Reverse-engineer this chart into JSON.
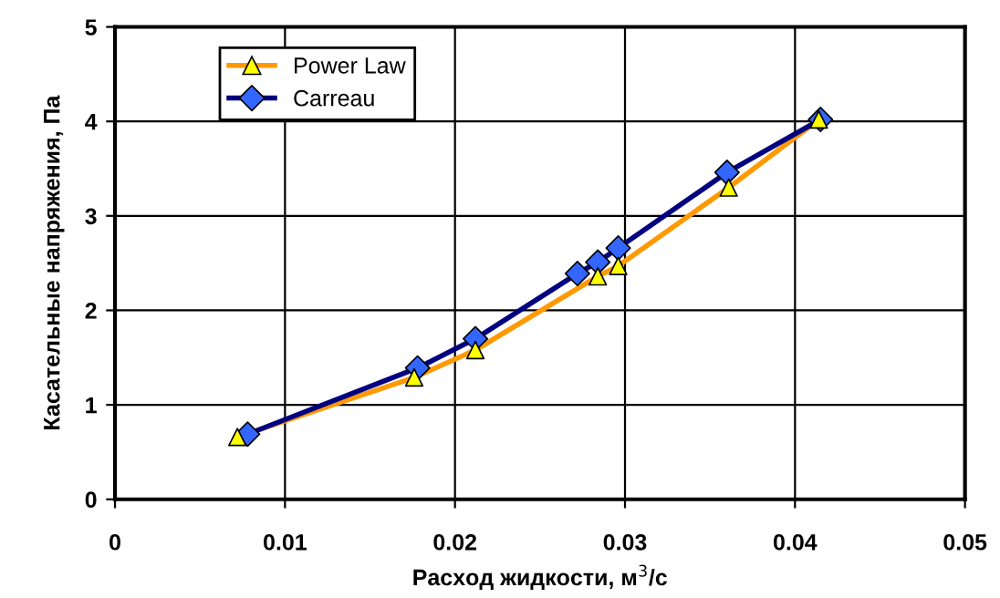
{
  "chart_data": {
    "type": "line",
    "xlabel": "Расход жидкости, м$^{3}$/с",
    "ylabel": "Касательные напряжения, Па",
    "xlim": [
      0,
      0.05
    ],
    "xticks": [
      0,
      0.01,
      0.02,
      0.03,
      0.04,
      0.05
    ],
    "ylim": [
      0,
      5
    ],
    "yticks": [
      0,
      1,
      2,
      3,
      4,
      5
    ],
    "grid": true,
    "legend": "top left",
    "series": [
      {
        "name": "Power Law",
        "color": "#ff9900",
        "marker": "triangle",
        "colors": [
          "#ffff00",
          "#ffff00",
          "#ffff00",
          "#ffff00",
          "#ffff00",
          "#ffff00",
          "#ffff00"
        ],
        "x": [
          0.0072,
          0.0176,
          0.0212,
          0.0284,
          0.0296,
          0.0361,
          0.0414
        ],
        "values": [
          0.66,
          1.29,
          1.58,
          2.36,
          2.47,
          3.3,
          4.02
        ]
      },
      {
        "name": "Carreau",
        "color": "#000080",
        "marker": "diamond",
        "colors": [
          "#3366ff",
          "#3366ff",
          "#3366ff",
          "#3366ff",
          "#3366ff",
          "#3366ff",
          "#3366ff",
          "#3366ff"
        ],
        "x": [
          0.0078,
          0.0178,
          0.0212,
          0.0272,
          0.0284,
          0.0296,
          0.036,
          0.0415
        ],
        "values": [
          0.69,
          1.39,
          1.7,
          2.39,
          2.51,
          2.66,
          3.46,
          4.02
        ]
      }
    ]
  }
}
